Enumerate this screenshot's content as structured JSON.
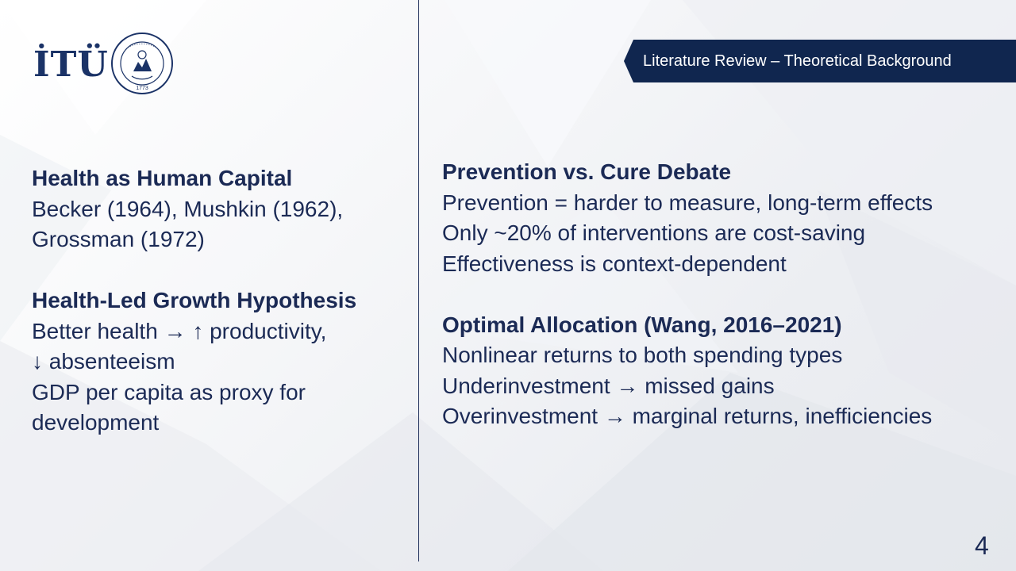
{
  "logo": {
    "text": "İTÜ",
    "seal_icon": "university-seal-icon",
    "seal_text": "İSTANBUL TEKNİK ÜNİVERSİTESİ",
    "seal_year": "1773"
  },
  "header": {
    "banner_title": "Literature Review – Theoretical Background",
    "banner_color": "#10264f"
  },
  "left_column": {
    "sections": [
      {
        "heading": "Health as Human Capital",
        "lines": [
          "Becker (1964), Mushkin (1962),",
          "Grossman (1972)"
        ]
      },
      {
        "heading": "Health-Led Growth Hypothesis",
        "lines": [
          "Better health → ↑ productivity,",
          "↓ absenteeism",
          "GDP per capita as proxy for",
          "development"
        ]
      }
    ]
  },
  "right_column": {
    "sections": [
      {
        "heading": "Prevention vs. Cure Debate",
        "lines": [
          "Prevention = harder to measure, long-term effects",
          "Only ~20% of interventions are cost-saving",
          "Effectiveness is context-dependent"
        ]
      },
      {
        "heading": "Optimal Allocation (Wang, 2016–2021)",
        "lines": [
          "Nonlinear returns to both spending types",
          "Underinvestment → missed gains",
          "Overinvestment → marginal returns, inefficiencies"
        ]
      }
    ]
  },
  "footer": {
    "page_number": "4"
  },
  "colors": {
    "text": "#1b2a55",
    "brand": "#1b3367",
    "divider": "#1f2f5a"
  }
}
